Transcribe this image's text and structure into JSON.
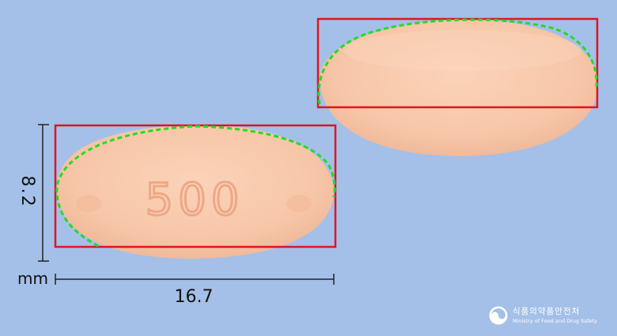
{
  "colors": {
    "background": "#a4c0e8",
    "tablet": "#f8c8aa",
    "imprint": "#eea887",
    "bounding_box": "#e0141e",
    "contour": "#22dd22"
  },
  "tablet_front": {
    "imprint": "500"
  },
  "tablet_back": {
    "imprint": ""
  },
  "measurements": {
    "height_value": "8.2",
    "unit": "mm",
    "width_value": "16.7"
  },
  "logo": {
    "icon": "mfds-emblem-icon",
    "korean_name": "식품의약품안전처",
    "english_name": "Ministry of Food and Drug Safety"
  }
}
